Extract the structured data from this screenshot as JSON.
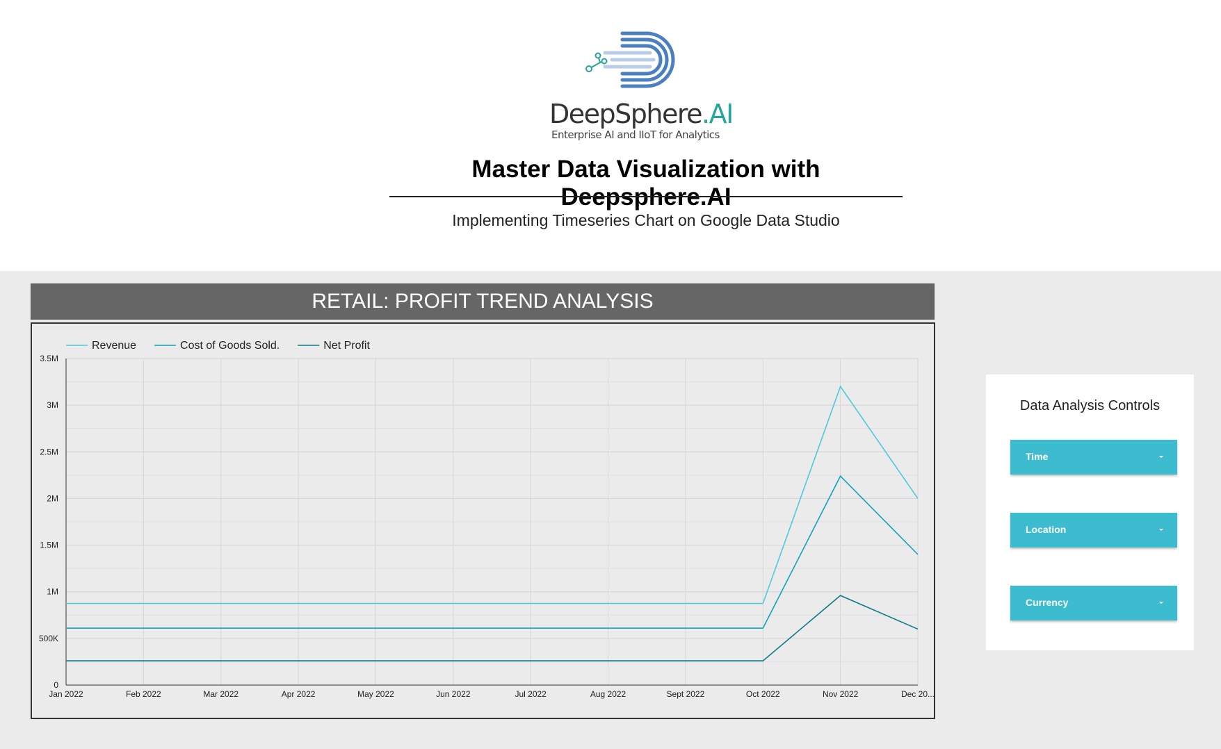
{
  "logo": {
    "name": "DeepSphere",
    "name_suffix": ".AI",
    "tagline": "Enterprise AI and IIoT for Analytics"
  },
  "header": {
    "title": "Master Data Visualization with Deepsphere.AI",
    "subtitle": "Implementing Timeseries Chart on Google Data Studio"
  },
  "chart_card": {
    "title": "RETAIL: PROFIT TREND ANALYSIS"
  },
  "chart_data": {
    "type": "line",
    "categories": [
      "Jan 2022",
      "Feb 2022",
      "Mar 2022",
      "Apr 2022",
      "May 2022",
      "Jun 2022",
      "Jul 2022",
      "Aug 2022",
      "Sept 2022",
      "Oct 2022",
      "Nov 2022",
      "Dec 20..."
    ],
    "series": [
      {
        "name": "Revenue",
        "color": "#4dc9dc",
        "values": [
          875000,
          875000,
          875000,
          875000,
          875000,
          875000,
          875000,
          875000,
          875000,
          875000,
          3200000,
          2000000
        ]
      },
      {
        "name": "Cost of Goods Sold.",
        "color": "#0fa3bd",
        "values": [
          610000,
          610000,
          610000,
          610000,
          610000,
          610000,
          610000,
          610000,
          610000,
          610000,
          2240000,
          1400000
        ]
      },
      {
        "name": "Net Profit",
        "color": "#0b7b8c",
        "values": [
          260000,
          260000,
          260000,
          260000,
          260000,
          260000,
          260000,
          260000,
          260000,
          260000,
          960000,
          600000
        ]
      }
    ],
    "y_ticks": [
      {
        "value": 0,
        "label": "0"
      },
      {
        "value": 500000,
        "label": "500K"
      },
      {
        "value": 1000000,
        "label": "1M"
      },
      {
        "value": 1500000,
        "label": "1.5M"
      },
      {
        "value": 2000000,
        "label": "2M"
      },
      {
        "value": 2500000,
        "label": "2.5M"
      },
      {
        "value": 3000000,
        "label": "3M"
      },
      {
        "value": 3500000,
        "label": "3.5M"
      }
    ],
    "ylim": [
      0,
      3500000
    ],
    "grid": true,
    "legend": "top-left"
  },
  "controls": {
    "title": "Data Analysis Controls",
    "items": [
      {
        "label": "Time"
      },
      {
        "label": "Location"
      },
      {
        "label": "Currency"
      }
    ]
  }
}
